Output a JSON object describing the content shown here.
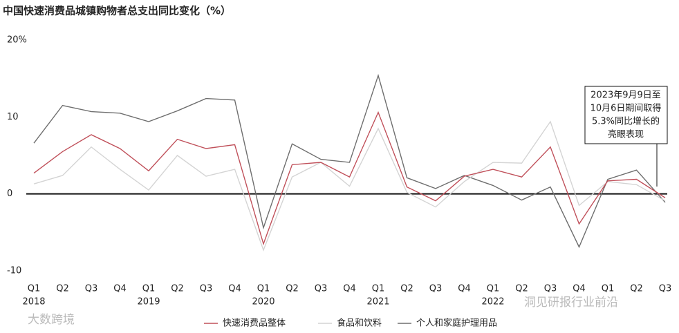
{
  "chart_data": {
    "type": "line",
    "title": "中国快速消费品城镇购物者总支出同比变化（%）",
    "categories": [
      "Q1",
      "Q2",
      "Q3",
      "Q4",
      "Q1",
      "Q2",
      "Q3",
      "Q4",
      "Q1",
      "Q2",
      "Q3",
      "Q4",
      "Q1",
      "Q2",
      "Q3",
      "Q4",
      "Q1",
      "Q2",
      "Q3",
      "Q4",
      "Q1",
      "Q2",
      "Q3"
    ],
    "category_years": [
      "2018",
      null,
      null,
      null,
      "2019",
      null,
      null,
      null,
      "2020",
      null,
      null,
      null,
      "2021",
      null,
      null,
      null,
      "2022",
      null,
      null,
      null,
      null,
      null,
      null
    ],
    "series": [
      {
        "name": "快速消费品整体",
        "color": "#c0505a",
        "values": [
          2.7,
          5.5,
          7.7,
          5.9,
          3.0,
          7.1,
          5.9,
          6.4,
          -6.5,
          3.8,
          4.1,
          2.2,
          10.6,
          0.9,
          -0.9,
          2.3,
          3.2,
          2.2,
          6.1,
          -3.9,
          1.7,
          1.9,
          -0.5
        ]
      },
      {
        "name": "食品和饮料",
        "color": "#d4d4d4",
        "values": [
          1.3,
          2.4,
          6.1,
          3.2,
          0.5,
          5.0,
          2.3,
          3.2,
          -7.3,
          2.2,
          4.1,
          1.0,
          8.5,
          0.2,
          -1.7,
          1.6,
          4.1,
          4.0,
          9.4,
          -1.5,
          1.6,
          1.2,
          -0.9
        ]
      },
      {
        "name": "个人和家庭护理用品",
        "color": "#6e6e6e",
        "values": [
          6.6,
          11.5,
          10.7,
          10.5,
          9.4,
          10.8,
          12.4,
          12.2,
          -4.4,
          6.5,
          4.5,
          4.1,
          15.4,
          2.1,
          0.7,
          2.4,
          1.1,
          -0.8,
          0.9,
          -6.9,
          1.9,
          3.1,
          -1.1
        ]
      }
    ],
    "ylim": [
      -10,
      20
    ],
    "yticks": [
      {
        "value": 20,
        "label": "20%"
      },
      10,
      0,
      -10
    ],
    "grid": false,
    "legend": "bottom",
    "annotation": {
      "lines": [
        "2023年9月9日至",
        "10月6日期间取得",
        "5.3%同比增长的",
        "亮眼表现"
      ]
    },
    "watermarks": [
      "洞见研报行业前沿",
      "大数跨境"
    ]
  }
}
